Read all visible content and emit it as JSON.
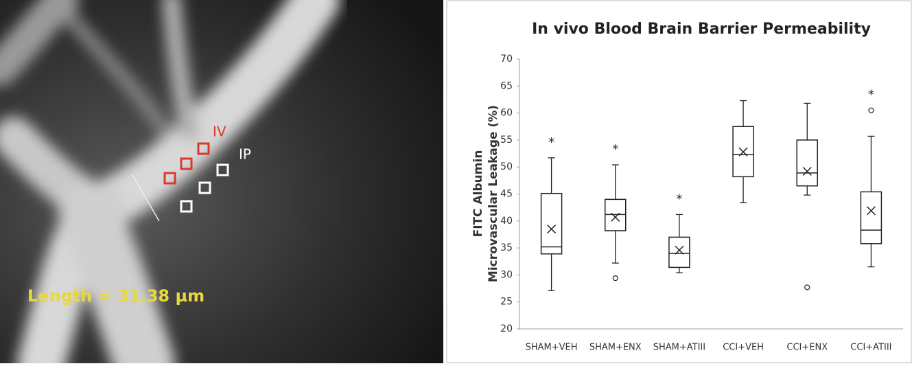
{
  "micrograph": {
    "region_labels": [
      "IV",
      "IP"
    ],
    "length_label": "Length = 31.38 µm"
  },
  "chart_data": {
    "type": "box",
    "title": "In vivo Blood Brain Barrier Permeability",
    "ylabel": [
      "FITC Albumin",
      "Microvascular Leakage (%)"
    ],
    "categories": [
      "SHAM+VEH",
      "SHAM+ENX",
      "SHAM+ATIII",
      "CCI+VEH",
      "CCI+ENX",
      "CCI+ATIII"
    ],
    "boxes": [
      {
        "min": 27.1,
        "q1": 33.9,
        "median": 35.2,
        "q3": 45.1,
        "max": 51.7,
        "mean": 38.5,
        "outliers": []
      },
      {
        "min": 32.2,
        "q1": 38.2,
        "median": 41.2,
        "q3": 44,
        "max": 50.4,
        "mean": 40.7,
        "outliers": [
          29.4
        ]
      },
      {
        "min": 30.4,
        "q1": 31.4,
        "median": 34,
        "q3": 37,
        "max": 41.2,
        "mean": 34.6,
        "outliers": []
      },
      {
        "min": 43.4,
        "q1": 48.2,
        "median": 52.3,
        "q3": 57.5,
        "max": 62.3,
        "mean": 52.8,
        "outliers": []
      },
      {
        "min": 44.8,
        "q1": 46.5,
        "median": 48.9,
        "q3": 55,
        "max": 61.8,
        "mean": 49.2,
        "outliers": [
          27.7
        ]
      },
      {
        "min": 31.5,
        "q1": 35.8,
        "median": 38.3,
        "q3": 45.4,
        "max": 55.7,
        "mean": 41.9,
        "outliers": [
          60.5
        ]
      }
    ],
    "annotations": [
      "*",
      "*",
      "*",
      null,
      null,
      "*"
    ],
    "color": "#222222",
    "ylim": [
      20,
      70
    ],
    "yticks": [
      20,
      25,
      30,
      35,
      40,
      45,
      50,
      55,
      60,
      65,
      70
    ]
  }
}
